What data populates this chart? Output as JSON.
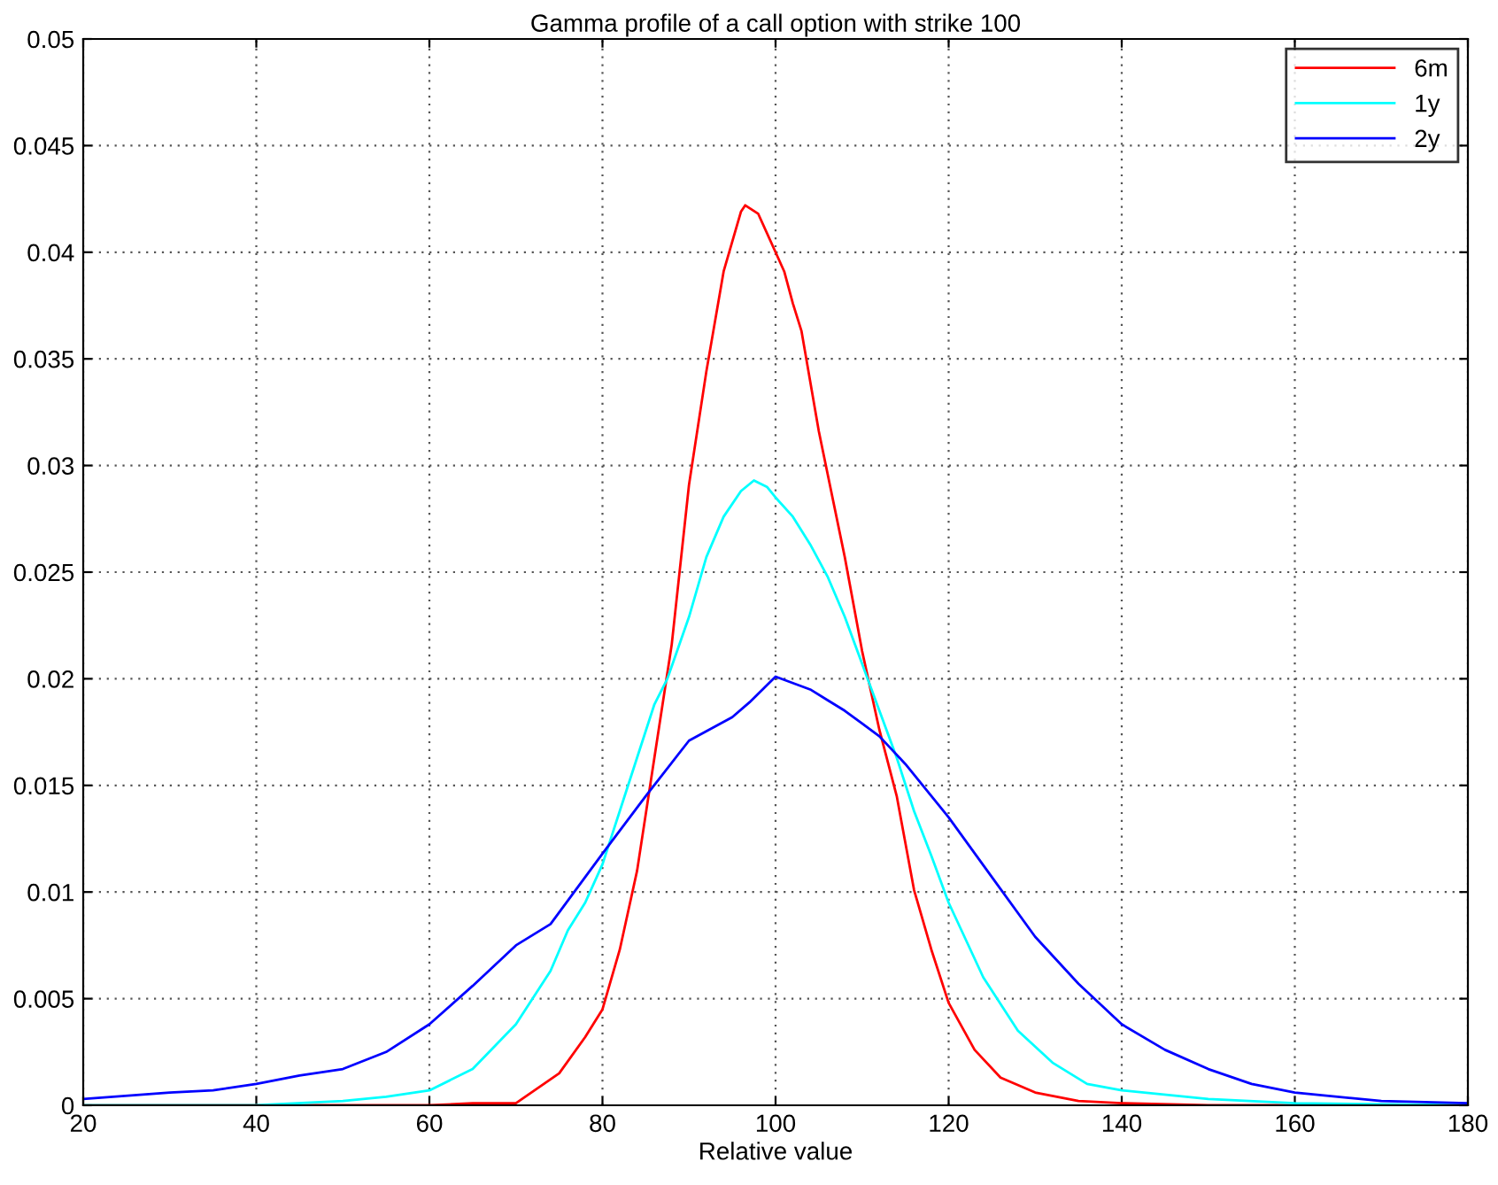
{
  "chart_data": {
    "type": "line",
    "title": "Gamma profile of a call option with strike 100",
    "xlabel": "Relative value",
    "xlim": [
      20,
      180
    ],
    "xticks": [
      20,
      40,
      60,
      80,
      100,
      120,
      140,
      160,
      180
    ],
    "ylim": [
      0,
      0.05
    ],
    "yticks": [
      0,
      0.005,
      0.01,
      0.015,
      0.02,
      0.025,
      0.03,
      0.035,
      0.04,
      0.045,
      0.05
    ],
    "grid": true,
    "legend": "top right",
    "line_style": "solid",
    "marker": "none",
    "series": [
      {
        "name": "6m",
        "color": "#ff0000",
        "x": [
          20,
          40,
          60,
          65,
          70,
          75,
          78,
          80,
          82,
          84,
          86,
          88,
          90,
          92,
          94,
          96,
          96.5,
          98,
          100,
          101,
          102,
          103,
          105,
          108,
          110,
          112,
          114,
          116,
          118,
          120,
          123,
          126,
          130,
          135,
          140,
          150,
          180
        ],
        "values": [
          0,
          0,
          0,
          0.0001,
          0.0001,
          0.0015,
          0.0032,
          0.0045,
          0.0073,
          0.011,
          0.0163,
          0.0216,
          0.0291,
          0.0344,
          0.0391,
          0.0419,
          0.0422,
          0.0418,
          0.04,
          0.0391,
          0.0376,
          0.0363,
          0.0316,
          0.0257,
          0.0213,
          0.0176,
          0.0145,
          0.0101,
          0.0073,
          0.0048,
          0.0026,
          0.0013,
          0.0006,
          0.0002,
          0.0001,
          0,
          0
        ]
      },
      {
        "name": "1y",
        "color": "#00ffff",
        "x": [
          20,
          40,
          50,
          55,
          60,
          65,
          70,
          74,
          76,
          78,
          80,
          82,
          84,
          86,
          87.5,
          90,
          92,
          94,
          96,
          97.5,
          99,
          100,
          102,
          104,
          106,
          108,
          110,
          112,
          114,
          116,
          118,
          120,
          124,
          128,
          132,
          136,
          140,
          150,
          160,
          180
        ],
        "values": [
          0,
          0,
          0.0002,
          0.0004,
          0.0007,
          0.0017,
          0.0038,
          0.0063,
          0.0082,
          0.0095,
          0.0113,
          0.0138,
          0.0163,
          0.0188,
          0.02,
          0.0229,
          0.0257,
          0.0276,
          0.0288,
          0.0293,
          0.029,
          0.0285,
          0.0276,
          0.0263,
          0.0248,
          0.0229,
          0.0207,
          0.0185,
          0.0163,
          0.0138,
          0.0117,
          0.0095,
          0.006,
          0.0035,
          0.002,
          0.001,
          0.0007,
          0.0003,
          0.0001,
          0
        ]
      },
      {
        "name": "2y",
        "color": "#0000ff",
        "x": [
          20,
          30,
          35,
          40,
          45,
          50,
          55,
          60,
          65,
          70,
          74,
          76,
          78,
          80,
          85,
          90,
          95,
          97,
          100,
          102,
          104,
          106,
          108,
          110,
          112,
          115,
          120,
          125,
          130,
          135,
          140,
          145,
          150,
          155,
          160,
          170,
          180
        ],
        "values": [
          0.0003,
          0.0006,
          0.0007,
          0.001,
          0.0014,
          0.0017,
          0.0025,
          0.0038,
          0.0056,
          0.0075,
          0.0085,
          0.0096,
          0.0107,
          0.0118,
          0.0145,
          0.0171,
          0.0182,
          0.0189,
          0.0201,
          0.0198,
          0.0195,
          0.019,
          0.0185,
          0.0179,
          0.0173,
          0.016,
          0.0135,
          0.0107,
          0.0079,
          0.0057,
          0.0038,
          0.0026,
          0.0017,
          0.001,
          0.0006,
          0.0002,
          0.0001
        ]
      }
    ]
  }
}
